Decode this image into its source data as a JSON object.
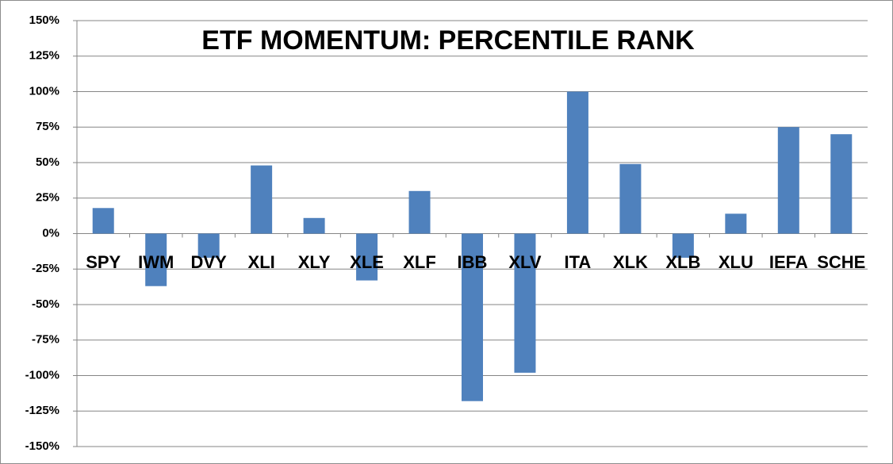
{
  "chart_data": {
    "type": "bar",
    "title": "ETF MOMENTUM: PERCENTILE RANK",
    "categories": [
      "SPY",
      "IWM",
      "DVY",
      "XLI",
      "XLY",
      "XLE",
      "XLF",
      "IBB",
      "XLV",
      "ITA",
      "XLK",
      "XLB",
      "XLU",
      "IEFA",
      "SCHE"
    ],
    "values": [
      18,
      -37,
      -17,
      48,
      11,
      -33,
      30,
      -118,
      -98,
      100,
      49,
      -17,
      14,
      75,
      70
    ],
    "color": "#4f81bd",
    "ylim": [
      -150,
      150
    ],
    "yticks": [
      {
        "value": -150,
        "label": "-150%"
      },
      {
        "value": -125,
        "label": "-125%"
      },
      {
        "value": -100,
        "label": "-100%"
      },
      {
        "value": -75,
        "label": "-75%"
      },
      {
        "value": -50,
        "label": "-50%"
      },
      {
        "value": -25,
        "label": "-25%"
      },
      {
        "value": 0,
        "label": "0%"
      },
      {
        "value": 25,
        "label": "25%"
      },
      {
        "value": 50,
        "label": "50%"
      },
      {
        "value": 75,
        "label": "75%"
      },
      {
        "value": 100,
        "label": "100%"
      },
      {
        "value": 125,
        "label": "125%"
      },
      {
        "value": 150,
        "label": "150%"
      }
    ],
    "grid": true
  }
}
